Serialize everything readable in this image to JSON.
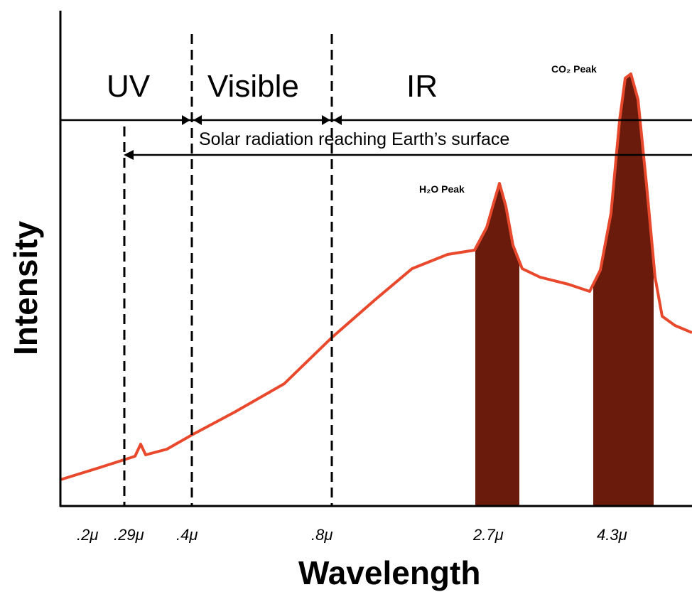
{
  "chart_data": {
    "type": "line",
    "title": "",
    "xlabel": "Wavelength",
    "ylabel": "Intensity",
    "x_ticks": [
      ".2μ",
      ".29μ",
      ".4μ",
      ".8μ",
      "2.7μ",
      "4.3μ"
    ],
    "regions": [
      {
        "name": "UV"
      },
      {
        "name": "Visible"
      },
      {
        "name": "IR"
      }
    ],
    "solar_band": {
      "label": "Solar radiation reaching Earth’s surface",
      "from": ".29μ"
    },
    "series": [
      {
        "color": "#e8492d",
        "points": [
          [
            ".2μ",
            0.07
          ],
          [
            ".29μ",
            0.11
          ],
          [
            ".29μ+",
            0.13
          ],
          [
            ".4μ",
            0.18
          ],
          [
            ".8μ",
            0.45
          ],
          [
            "1.8μ",
            0.63
          ],
          [
            "2.4μ",
            0.67
          ],
          [
            "2.7μ",
            0.87
          ],
          [
            "3.5μ",
            0.59
          ],
          [
            "4.0μ",
            0.57
          ],
          [
            "4.3μ",
            1.0
          ],
          [
            "4.6μ",
            0.51
          ],
          [
            "5μ",
            0.47
          ]
        ]
      }
    ],
    "peaks": [
      {
        "label": "H₂O Peak",
        "at": "2.7μ",
        "fill": "#6a1b0c"
      },
      {
        "label": "CO₂ Peak",
        "at": "4.3μ",
        "fill": "#6a1b0c"
      }
    ],
    "grid": false,
    "legend": "none"
  }
}
